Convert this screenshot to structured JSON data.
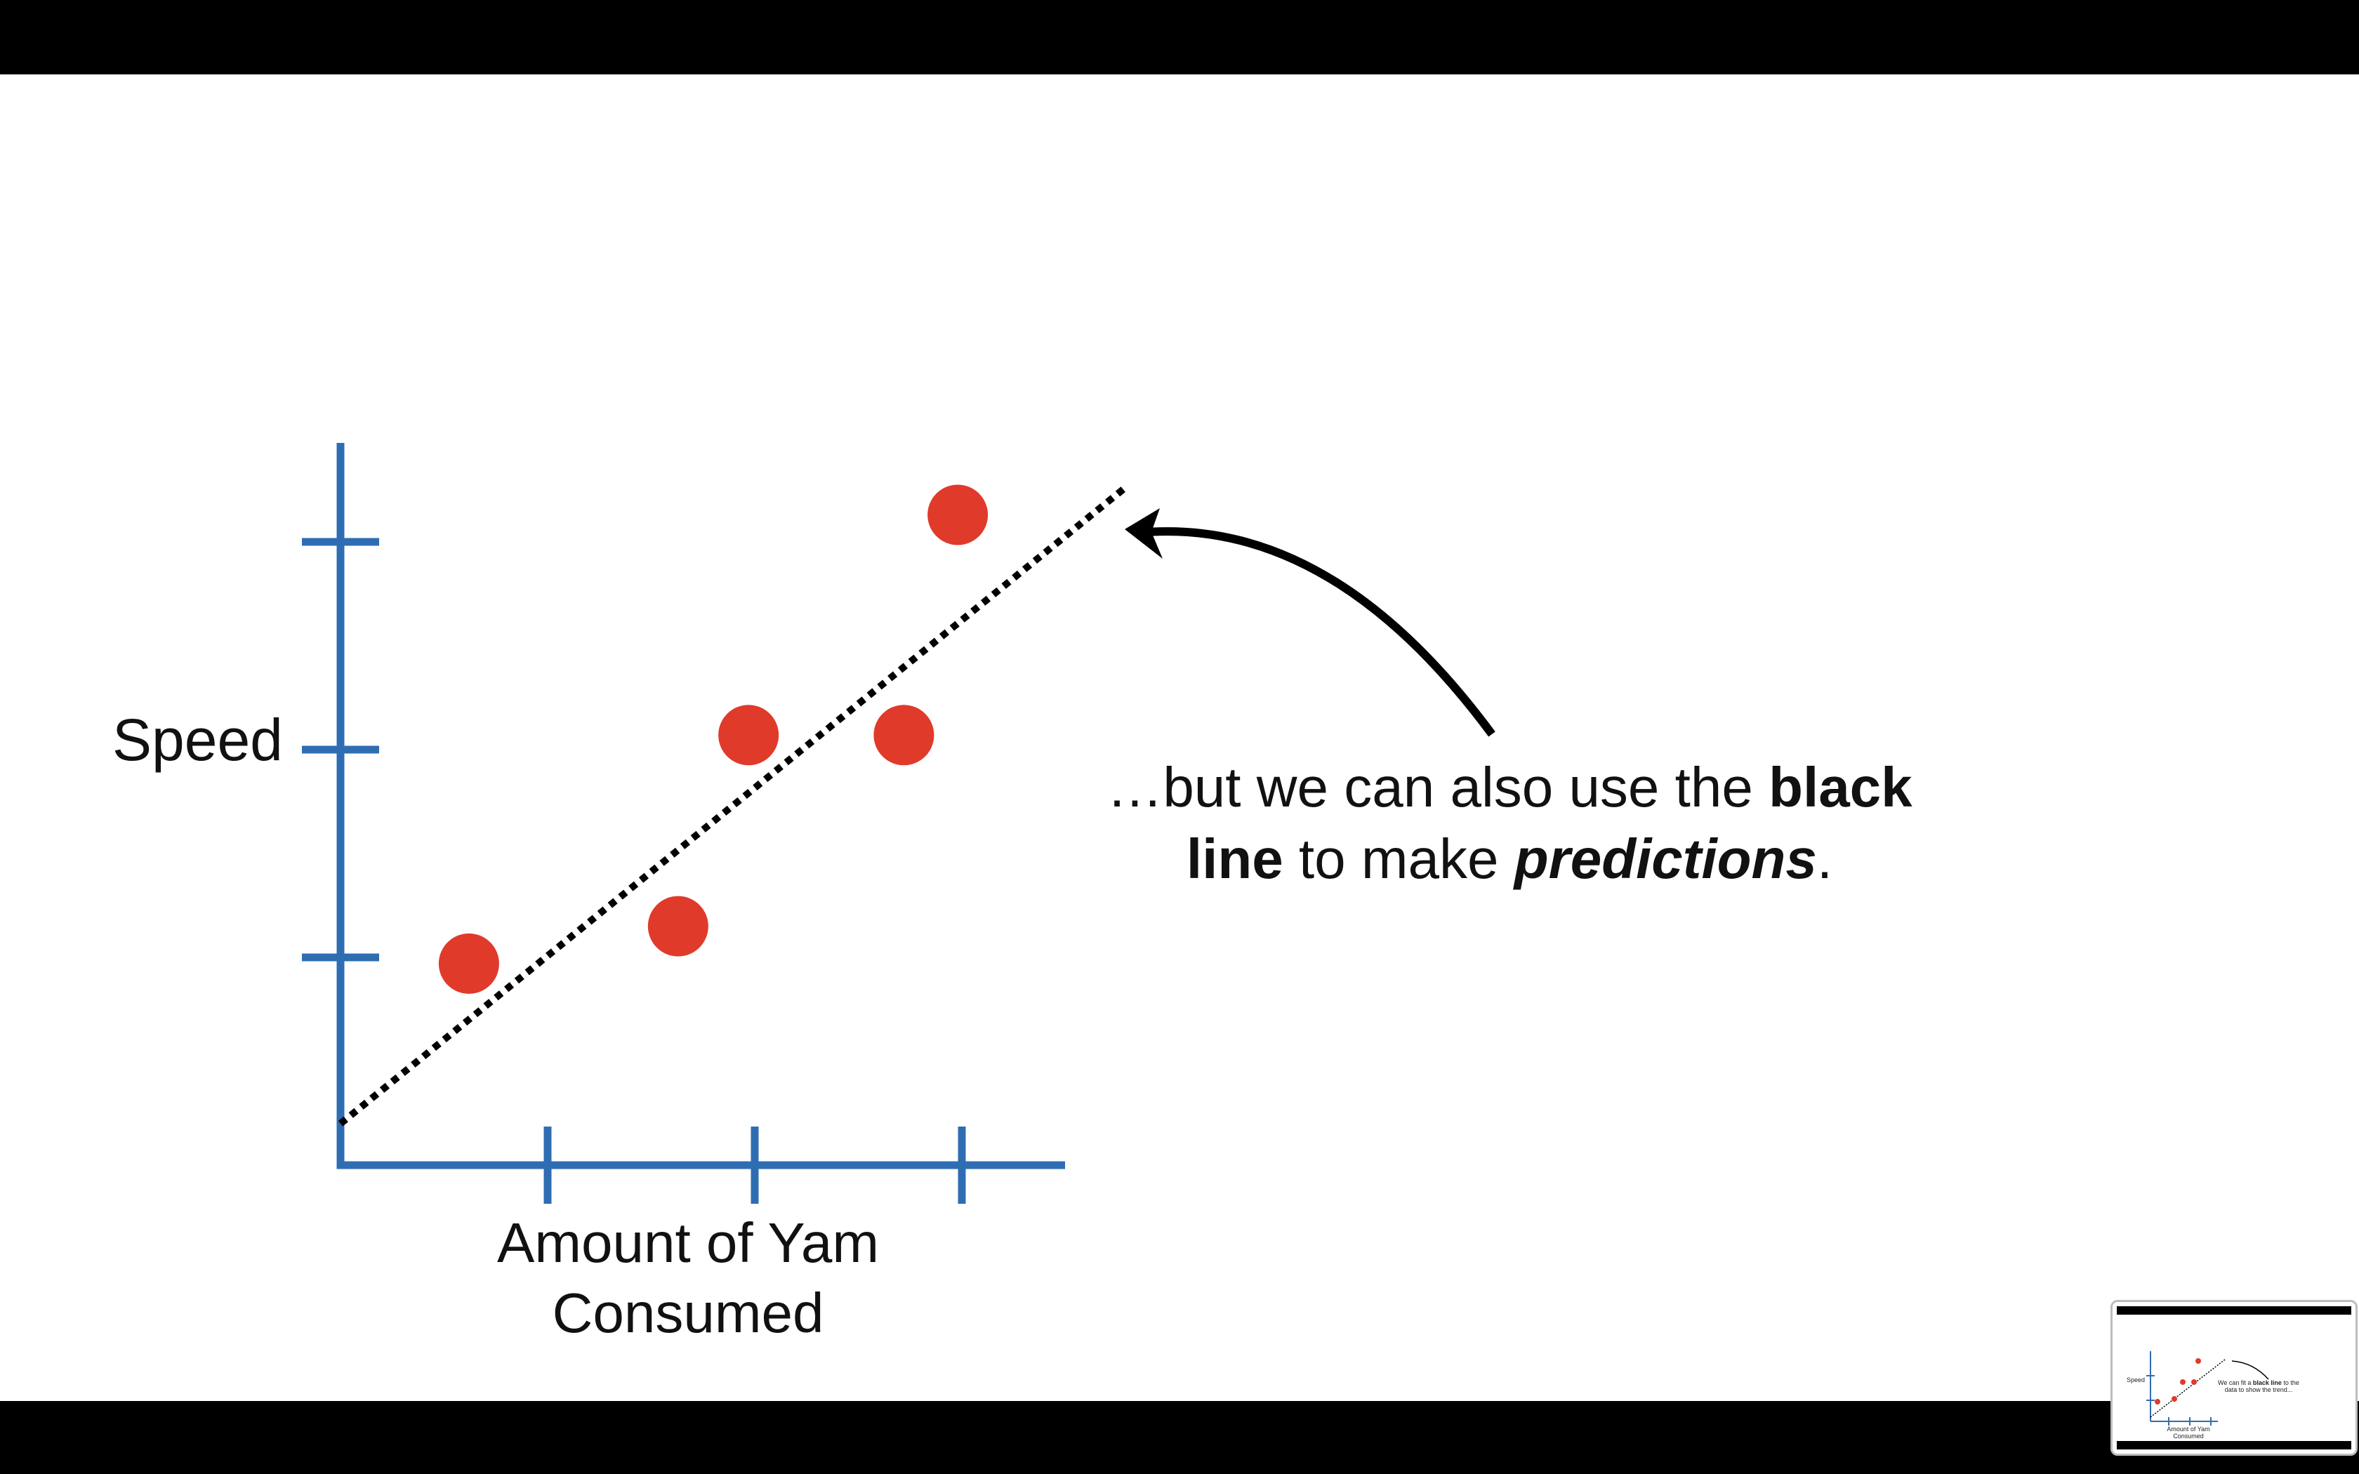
{
  "slide": {
    "ylabel": "Speed",
    "xlabel": "Amount of Yam Consumed",
    "caption": {
      "part1": "…but we can also use the ",
      "bold1": "black line",
      "part2": " to make ",
      "bold_italic": "predictions",
      "part3": "."
    }
  },
  "colors": {
    "axis": "#2f6db3",
    "point": "#e03a2b",
    "trend_line": "#000000",
    "arrow": "#000000",
    "background": "#ffffff",
    "letterbox": "#000000"
  },
  "chart_data": {
    "type": "scatter",
    "title": "",
    "xlabel": "Amount of Yam Consumed",
    "ylabel": "Speed",
    "xlim": [
      0,
      3.5
    ],
    "ylim": [
      0,
      3.0
    ],
    "x_ticks": [
      1,
      2,
      3
    ],
    "y_ticks": [
      1,
      2,
      3
    ],
    "points": [
      {
        "x": 0.62,
        "y": 0.97
      },
      {
        "x": 1.63,
        "y": 1.15
      },
      {
        "x": 1.97,
        "y": 2.07
      },
      {
        "x": 2.72,
        "y": 2.07
      },
      {
        "x": 2.98,
        "y": 3.13
      }
    ],
    "trend_line": {
      "style": "dotted",
      "from": [
        0,
        0.2
      ],
      "to": [
        3.8,
        3.27
      ]
    },
    "annotation_arrow": "points to the black line"
  },
  "thumbnail": {
    "ylabel": "Speed",
    "xlabel": "Amount of Yam Consumed",
    "caption_part1": "We can fit a ",
    "caption_bold": "black line",
    "caption_part2": " to the data to show the trend..."
  }
}
